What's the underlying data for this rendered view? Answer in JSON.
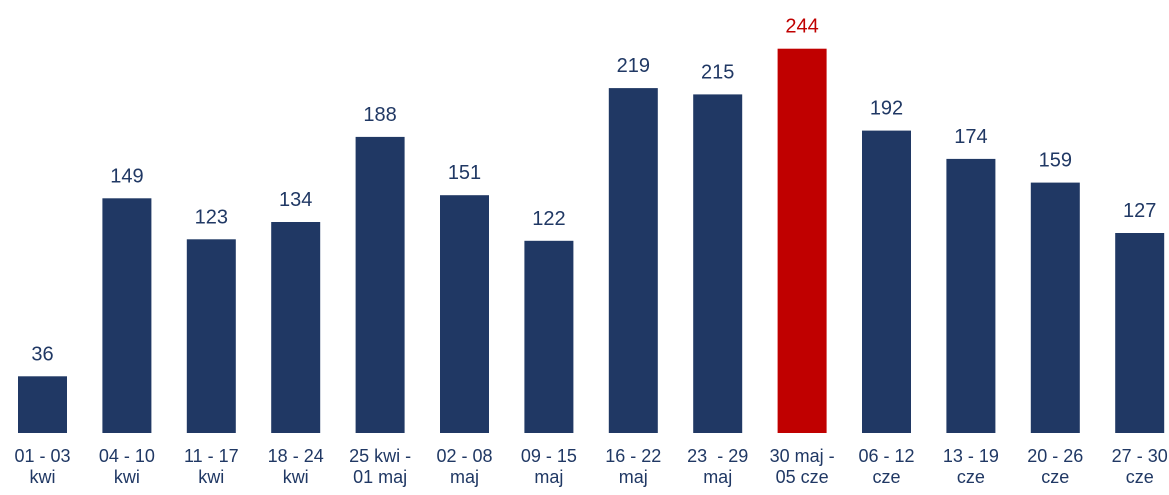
{
  "chart_data": {
    "type": "bar",
    "title": "",
    "xlabel": "",
    "ylabel": "",
    "ylim": [
      0,
      260
    ],
    "grid": false,
    "legend": "none",
    "categories": [
      [
        "01 - 03",
        "kwi"
      ],
      [
        "04 - 10",
        "kwi"
      ],
      [
        "11 - 17",
        "kwi"
      ],
      [
        "18 - 24",
        "kwi"
      ],
      [
        "25 kwi -",
        "01 maj"
      ],
      [
        "02 - 08",
        "maj"
      ],
      [
        "09 - 15",
        "maj"
      ],
      [
        "16 - 22",
        "maj"
      ],
      [
        "23  - 29",
        "maj"
      ],
      [
        "30 maj -",
        "05 cze"
      ],
      [
        "06 - 12",
        "cze"
      ],
      [
        "13 - 19",
        "cze"
      ],
      [
        "20 - 26",
        "cze"
      ],
      [
        "27 - 30",
        "cze"
      ]
    ],
    "values": [
      36,
      149,
      123,
      134,
      188,
      151,
      122,
      219,
      215,
      244,
      192,
      174,
      159,
      127
    ],
    "highlight_index": 9,
    "colors": {
      "bar": "#203864",
      "highlight": "#c00000",
      "label": "#203864",
      "highlight_label": "#c00000",
      "axis_text": "#203864"
    }
  }
}
